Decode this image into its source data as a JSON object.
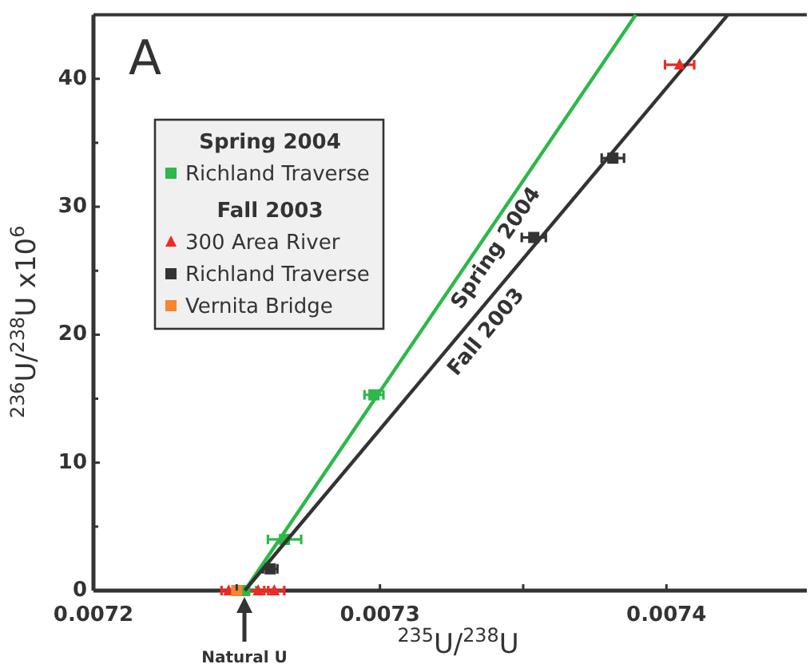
{
  "chart_data": {
    "type": "scatter",
    "xlabel": "$^{235}$U/$^{238}$U",
    "ylabel": "$^{236}$U/$^{238}$U x10$^{6}$",
    "annotations": [
      "A",
      "Natural U"
    ],
    "xlim": [
      0.0072,
      0.007449
    ],
    "ylim": [
      0,
      45
    ],
    "xticks": [
      0.0072,
      {
        "value": 0.00725,
        "label": null
      },
      0.0073,
      {
        "value": 0.00735,
        "label": null
      },
      0.0074
    ],
    "yticks": [
      0,
      {
        "value": 5,
        "label": null
      },
      10,
      {
        "value": 15,
        "label": null
      },
      20,
      {
        "value": 25,
        "label": null
      },
      30,
      {
        "value": 35,
        "label": null
      },
      40
    ],
    "grid": false,
    "legend": "top left",
    "series": [
      {
        "name": "Spring 2004",
        "type": "line",
        "color": "#2db84a",
        "x": [
          0.0072528,
          0.0073893
        ],
        "values": [
          0,
          45
        ]
      },
      {
        "name": "Richland Traverse",
        "color": "#2db84a",
        "marker": "square",
        "x": [
          0.0072528,
          0.0072667,
          0.0072979
        ],
        "values": [
          0,
          4,
          15.3
        ],
        "xerrors": [
          4e-06,
          5.8e-06,
          3.3e-06
        ]
      },
      {
        "name": "Fall 2003",
        "type": "line",
        "color": "#333333",
        "x": [
          0.0072528,
          0.0074214
        ],
        "values": [
          0,
          45
        ]
      },
      {
        "name": "300 Area River",
        "color": "#ee2a24",
        "marker": "triangle",
        "x": [
          0.0072472,
          0.0072575,
          0.0072631,
          0.0074046
        ],
        "values": [
          0,
          0,
          0,
          41.1
        ],
        "xerrors": [
          2.5e-06,
          3.5e-06,
          3.5e-06,
          5.1e-06
        ]
      },
      {
        "name": "Richland Traverse",
        "color": "#333333",
        "marker": "square",
        "x": [
          0.0072617,
          0.0073537,
          0.0073813
        ],
        "values": [
          1.7,
          27.6,
          33.8
        ],
        "xerrors": [
          2.5e-06,
          4.2e-06,
          3.9e-06
        ]
      },
      {
        "name": "Vernita Bridge",
        "color": "#f7842e",
        "marker": "square",
        "x": [
          0.00725
        ],
        "values": [
          0
        ]
      }
    ]
  }
}
